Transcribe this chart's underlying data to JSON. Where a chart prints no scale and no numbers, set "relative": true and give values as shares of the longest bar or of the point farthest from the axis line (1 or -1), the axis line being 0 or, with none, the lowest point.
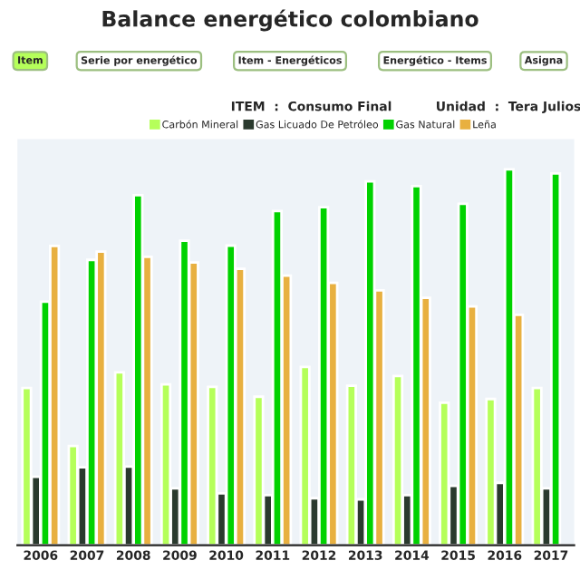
{
  "chart_data": {
    "type": "bar",
    "title": "Balance energético colombiano",
    "subtitle": "ITEM  :  Consumo Final          Unidad  :  Tera Julios",
    "annotations": [
      "Item",
      "Serie por energético",
      "Item - Energéticos",
      "Energético - Items",
      "Asigna"
    ],
    "relative": true,
    "legend": "top",
    "categories": [
      "2006",
      "2007",
      "2008",
      "2009",
      "2010",
      "2011",
      "2012",
      "2013",
      "2014",
      "2015",
      "2016",
      "2017"
    ],
    "series": [
      {
        "name": "Carbón Mineral",
        "color": "#b5ff5a",
        "values": [
          0.418,
          0.264,
          0.46,
          0.428,
          0.421,
          0.395,
          0.474,
          0.424,
          0.45,
          0.379,
          0.389,
          0.418
        ]
      },
      {
        "name": "Gas Licuado De Petróleo",
        "color": "#2a3a2e",
        "values": [
          0.182,
          0.207,
          0.209,
          0.151,
          0.138,
          0.133,
          0.125,
          0.122,
          0.133,
          0.158,
          0.166,
          0.151
        ]
      },
      {
        "name": "Gas Natural",
        "color": "#00d200",
        "values": [
          0.648,
          0.759,
          0.931,
          0.81,
          0.797,
          0.889,
          0.899,
          0.968,
          0.955,
          0.908,
          1,
          0.989
        ]
      },
      {
        "name": "Leña",
        "color": "#e8b040",
        "values": [
          0.796,
          0.781,
          0.767,
          0.752,
          0.735,
          0.717,
          0.698,
          0.678,
          0.658,
          0.635,
          0.613,
          null
        ]
      }
    ]
  }
}
